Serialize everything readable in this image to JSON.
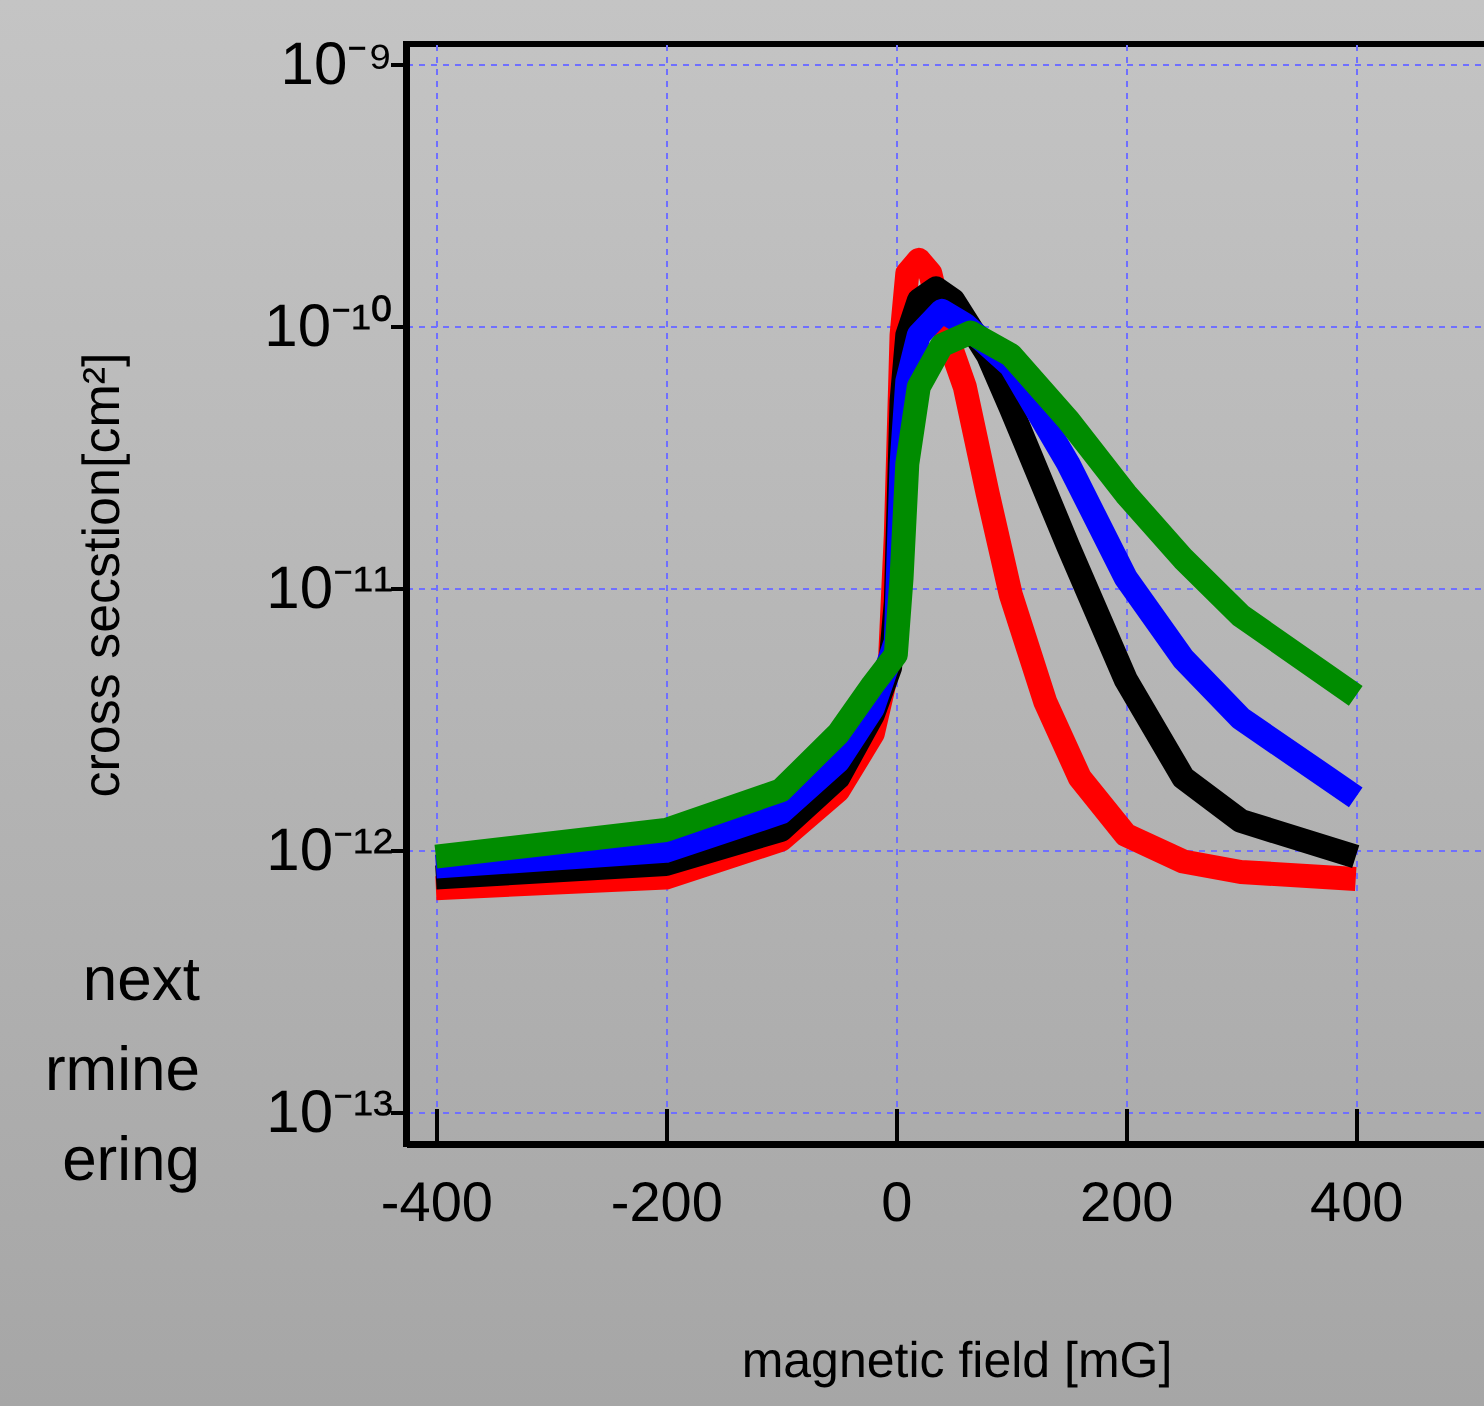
{
  "chart_data": {
    "type": "line",
    "xlabel": "magnetic field [mG]",
    "ylabel": "cross secstion[cm²]",
    "xlim": [
      -426,
      522
    ],
    "xticks": [
      -400,
      -200,
      0,
      200,
      400
    ],
    "ylim": [
      7.6e-14,
      1.2e-09
    ],
    "log": "y",
    "yticks": [
      {
        "value": 1e-09,
        "label": "10⁻⁹"
      },
      {
        "value": 1e-10,
        "label": "10⁻¹⁰"
      },
      {
        "value": 1e-11,
        "label": "10⁻¹¹"
      },
      {
        "value": 1e-12,
        "label": "10⁻¹²"
      },
      {
        "value": 1e-13,
        "label": "10⁻¹³"
      }
    ],
    "grid": true,
    "marker": "none",
    "line_style": "solid",
    "annotations": [
      "next",
      "rmine",
      "ering"
    ],
    "series": [
      {
        "color": "#ff0000",
        "x": [
          -400,
          -200,
          -100,
          -50,
          -20,
          -5,
          0,
          5,
          10,
          20,
          30,
          40,
          60,
          80,
          100,
          130,
          160,
          200,
          250,
          300,
          400
        ],
        "values": [
          7.2e-13,
          7.9e-13,
          1.1e-12,
          1.7e-12,
          2.8e-12,
          5.4e-12,
          1.6e-11,
          9.3e-11,
          1.6e-10,
          1.8e-10,
          1.6e-10,
          1.05e-10,
          5.9e-11,
          2.3e-11,
          9.5e-12,
          3.7e-12,
          1.9e-12,
          1.15e-12,
          9.1e-13,
          8.3e-13,
          7.8e-13
        ]
      },
      {
        "color": "#000000",
        "x": [
          -400,
          -200,
          -100,
          -50,
          -20,
          -5,
          0,
          5,
          10,
          20,
          35,
          50,
          80,
          100,
          150,
          200,
          250,
          300,
          400
        ],
        "values": [
          7.9e-13,
          8.9e-13,
          1.2e-12,
          1.9e-12,
          3.3e-12,
          5e-12,
          8.9e-12,
          5.2e-11,
          9.3e-11,
          1.26e-10,
          1.4e-10,
          1.26e-10,
          7.8e-11,
          4.9e-11,
          1.45e-11,
          4.5e-12,
          1.9e-12,
          1.3e-12,
          9.5e-13
        ]
      },
      {
        "color": "#0000ff",
        "x": [
          -400,
          -200,
          -100,
          -50,
          -20,
          0,
          5,
          10,
          20,
          40,
          60,
          100,
          150,
          200,
          250,
          300,
          400
        ],
        "values": [
          8.7e-13,
          1e-12,
          1.4e-12,
          2.2e-12,
          3.5e-12,
          6.3e-12,
          3e-11,
          6.2e-11,
          9.3e-11,
          1.15e-10,
          1.02e-10,
          7.1e-11,
          3e-11,
          1.1e-11,
          5.4e-12,
          3.2e-12,
          1.6e-12
        ]
      },
      {
        "color": "#008c00",
        "x": [
          -400,
          -200,
          -100,
          -50,
          -20,
          0,
          5,
          10,
          20,
          40,
          65,
          100,
          150,
          200,
          250,
          300,
          400
        ],
        "values": [
          9.5e-13,
          1.2e-12,
          1.7e-12,
          2.8e-12,
          4.3e-12,
          5.6e-12,
          1.1e-11,
          3e-11,
          5.9e-11,
          8.5e-11,
          9.5e-11,
          7.8e-11,
          4.4e-11,
          2.3e-11,
          1.3e-11,
          7.9e-12,
          3.9e-12
        ]
      }
    ]
  }
}
